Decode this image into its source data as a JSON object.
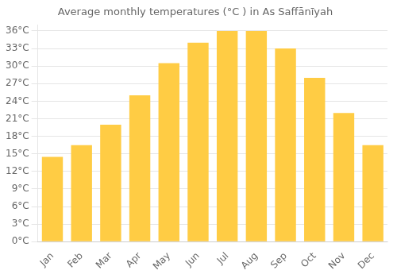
{
  "chart_data": {
    "type": "bar",
    "title": "Average monthly temperatures (°C ) in As Saffānīyah",
    "categories": [
      "Jan",
      "Feb",
      "Mar",
      "Apr",
      "May",
      "Jun",
      "Jul",
      "Aug",
      "Sep",
      "Oct",
      "Nov",
      "Dec"
    ],
    "values": [
      14.5,
      16.5,
      20.0,
      25.0,
      30.5,
      34.0,
      36.0,
      36.0,
      33.0,
      28.0,
      22.0,
      16.5
    ],
    "color": "#FFCC44",
    "ylim": [
      0,
      37
    ],
    "yticks": [
      {
        "value": 0,
        "label": "0°C"
      },
      {
        "value": 3,
        "label": "3°C"
      },
      {
        "value": 6,
        "label": "6°C"
      },
      {
        "value": 9,
        "label": "9°C"
      },
      {
        "value": 12,
        "label": "12°C"
      },
      {
        "value": 15,
        "label": "15°C"
      },
      {
        "value": 18,
        "label": "18°C"
      },
      {
        "value": 21,
        "label": "21°C"
      },
      {
        "value": 24,
        "label": "24°C"
      },
      {
        "value": 27,
        "label": "27°C"
      },
      {
        "value": 30,
        "label": "30°C"
      },
      {
        "value": 33,
        "label": "33°C"
      },
      {
        "value": 36,
        "label": "36°C"
      }
    ],
    "grid": true
  }
}
